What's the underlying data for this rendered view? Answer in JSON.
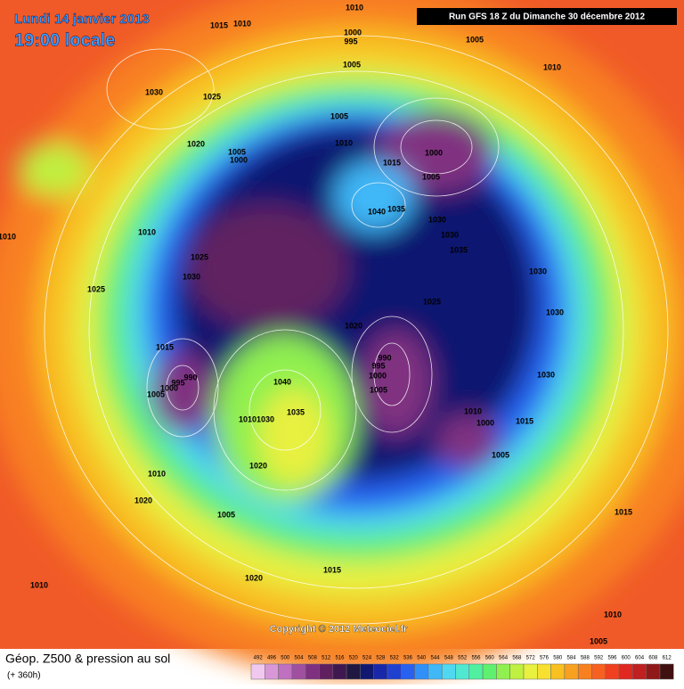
{
  "header": {
    "date": "Lundi 14 janvier 2013",
    "time": "19:00 locale",
    "run": "Run GFS 18 Z du Dimanche 30 décembre 2012"
  },
  "footer": {
    "copyright": "Copyright © 2012 Meteociel.fr"
  },
  "legend": {
    "title": "Géop. Z500 & pression au sol",
    "subtitle": "(+ 360h)",
    "levels": [
      492,
      496,
      500,
      504,
      508,
      512,
      516,
      520,
      524,
      528,
      532,
      536,
      540,
      544,
      548,
      552,
      556,
      560,
      564,
      568,
      572,
      576,
      580,
      584,
      588,
      592,
      596,
      600,
      604,
      608,
      612
    ],
    "colors": [
      "#f0c8f0",
      "#d898d8",
      "#c070c0",
      "#a050a0",
      "#803080",
      "#602060",
      "#401850",
      "#201840",
      "#101870",
      "#1828a8",
      "#2040d0",
      "#2860f0",
      "#3090f8",
      "#40b8f8",
      "#50d8f0",
      "#50e8d0",
      "#50f0a0",
      "#60f070",
      "#90f050",
      "#c0f040",
      "#e8f040",
      "#f8e030",
      "#f8c020",
      "#f8a020",
      "#f88020",
      "#f86020",
      "#f04020",
      "#e02820",
      "#c02020",
      "#901818",
      "#401010"
    ]
  },
  "isobars": [
    "1010",
    "1015",
    "1010",
    "1000",
    "995",
    "1005",
    "1010",
    "1005",
    "1030",
    "1025",
    "1005",
    "1020",
    "1010",
    "1005",
    "1000",
    "1000",
    "1015",
    "1005",
    "1040",
    "1035",
    "1030",
    "1030",
    "1010",
    "1010",
    "1035",
    "1025",
    "1030",
    "1025",
    "1030",
    "1025",
    "1030",
    "1020",
    "1015",
    "990",
    "995",
    "1000",
    "990",
    "995",
    "1000",
    "1005",
    "1005",
    "1030",
    "1040",
    "1035",
    "1010",
    "1030",
    "1010",
    "1015",
    "1000",
    "1005",
    "1020",
    "1010",
    "1020",
    "1005",
    "1015",
    "1015",
    "1020",
    "1010",
    "1010",
    "1005"
  ]
}
